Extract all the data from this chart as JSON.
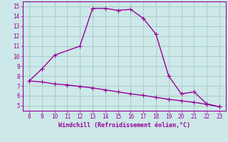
{
  "line1_x": [
    8,
    9,
    10,
    12,
    13,
    14,
    15,
    16,
    17,
    18,
    19,
    20,
    21,
    22,
    23
  ],
  "line1_y": [
    7.5,
    8.7,
    10.1,
    11.0,
    14.8,
    14.8,
    14.6,
    14.7,
    13.8,
    12.2,
    8.0,
    6.2,
    6.4,
    5.2,
    4.9
  ],
  "line2_x": [
    8,
    9,
    10,
    11,
    12,
    13,
    14,
    15,
    16,
    17,
    18,
    19,
    20,
    21,
    22,
    23
  ],
  "line2_y": [
    7.5,
    7.4,
    7.2,
    7.1,
    6.95,
    6.8,
    6.6,
    6.4,
    6.2,
    6.05,
    5.85,
    5.65,
    5.5,
    5.35,
    5.15,
    4.9
  ],
  "color": "#990099",
  "bg_color": "#cce8e8",
  "grid_color": "#aacccc",
  "xlabel": "Windchill (Refroidissement éolien,°C)",
  "xlim": [
    7.5,
    23.5
  ],
  "ylim": [
    4.5,
    15.5
  ],
  "xticks": [
    8,
    9,
    10,
    11,
    12,
    13,
    14,
    15,
    16,
    17,
    18,
    19,
    20,
    21,
    22,
    23
  ],
  "yticks": [
    5,
    6,
    7,
    8,
    9,
    10,
    11,
    12,
    13,
    14,
    15
  ],
  "marker": "+",
  "markersize": 4,
  "linewidth": 1.0,
  "tick_fontsize": 5.5,
  "label_fontsize": 6.0
}
